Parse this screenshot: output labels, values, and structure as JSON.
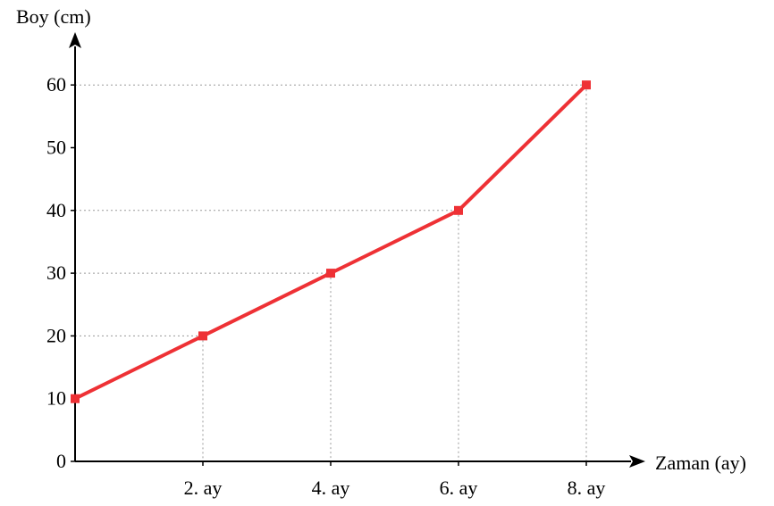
{
  "chart_data": {
    "type": "line",
    "xlabel": "Zaman (ay)",
    "ylabel": "Boy (cm)",
    "x_origin_label": "",
    "categories": [
      "2. ay",
      "4. ay",
      "6. ay",
      "8. ay"
    ],
    "x": [
      0,
      2,
      4,
      6,
      8
    ],
    "y_ticks": [
      0,
      10,
      20,
      30,
      40,
      50,
      60
    ],
    "ylim": [
      0,
      60
    ],
    "xlim": [
      0,
      8
    ],
    "grid": "dotted guides from points to axes",
    "legend": "none",
    "series": [
      {
        "values": [
          10,
          20,
          30,
          40,
          60
        ]
      }
    ],
    "colors": {
      "line": "#ee3135",
      "axis": "#000000",
      "guide": "#9a9a9a"
    }
  }
}
